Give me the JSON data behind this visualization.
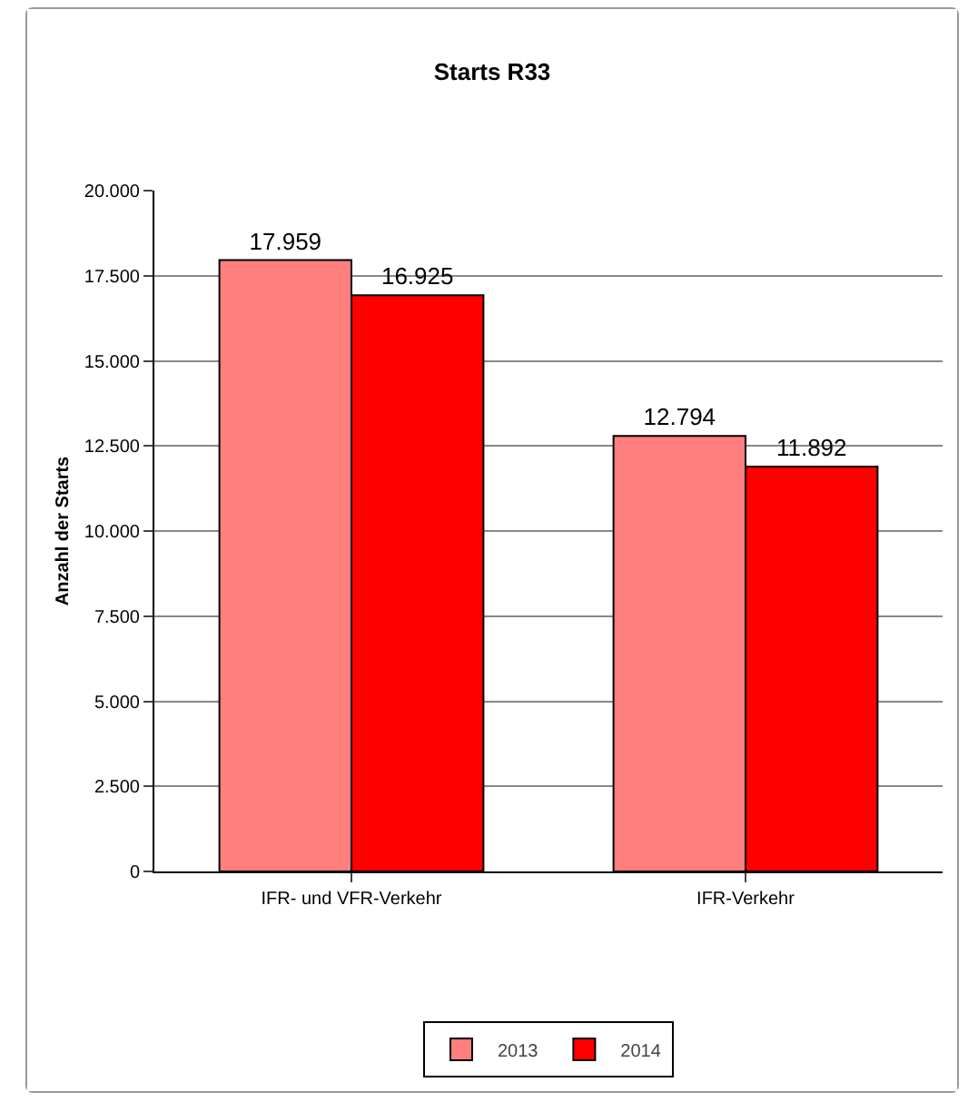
{
  "chart_data": {
    "type": "bar",
    "title": "Starts R33",
    "ylabel": "Anzahl der Starts",
    "categories": [
      "IFR- und VFR-Verkehr",
      "IFR-Verkehr"
    ],
    "series": [
      {
        "name": "2013",
        "color": "#ff7f7f",
        "values": [
          17959,
          12794
        ],
        "value_labels": [
          "17.959",
          "12.794"
        ]
      },
      {
        "name": "2014",
        "color": "#ff0000",
        "values": [
          16925,
          11892
        ],
        "value_labels": [
          "16.925",
          "11.892"
        ]
      }
    ],
    "ylim": [
      0,
      20000
    ],
    "yticks": [
      0,
      {
        "value": 2500,
        "label": "2.500"
      },
      {
        "value": 5000,
        "label": "5.000"
      },
      {
        "value": 7500,
        "label": "7.500"
      },
      {
        "value": 10000,
        "label": "10.000"
      },
      {
        "value": 12500,
        "label": "12.500"
      },
      {
        "value": 15000,
        "label": "15.000"
      },
      {
        "value": 17500,
        "label": "17.500"
      },
      {
        "value": 20000,
        "label": "20.000"
      }
    ],
    "grid": "y",
    "legend": "bottom"
  }
}
